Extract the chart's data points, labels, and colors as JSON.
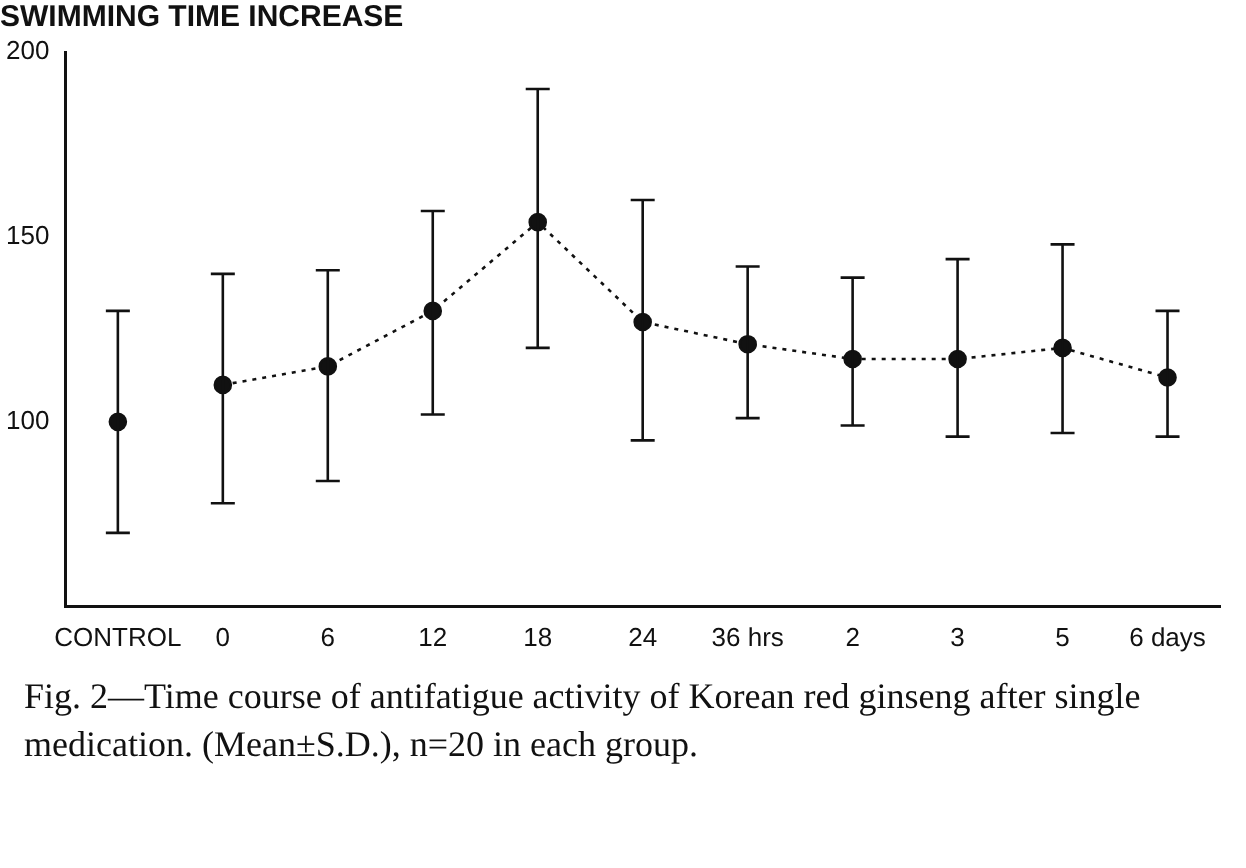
{
  "chart_data": {
    "type": "line",
    "title": "SWIMMING TIME INCREASE",
    "categories": [
      "CONTROL",
      "0",
      "6",
      "12",
      "18",
      "24",
      "36 hrs",
      "2",
      "3",
      "5",
      "6 days"
    ],
    "series": [
      {
        "type": "scatter",
        "color": "#111111",
        "values": [
          100,
          null,
          null,
          null,
          null,
          null,
          null,
          null,
          null,
          null,
          null
        ],
        "errors": [
          [
            70,
            130
          ],
          null,
          null,
          null,
          null,
          null,
          null,
          null,
          null,
          null,
          null
        ]
      },
      {
        "type": "line",
        "color": "#111111",
        "line_style": "dotted",
        "values": [
          null,
          110,
          115,
          130,
          154,
          127,
          121,
          117,
          117,
          120,
          112
        ],
        "errors": [
          null,
          [
            78,
            140
          ],
          [
            84,
            141
          ],
          [
            102,
            157
          ],
          [
            120,
            190
          ],
          [
            95,
            160
          ],
          [
            101,
            142
          ],
          [
            99,
            139
          ],
          [
            96,
            144
          ],
          [
            97,
            148
          ],
          [
            96,
            130
          ]
        ]
      }
    ],
    "ylim": [
      50,
      200
    ],
    "yticks": [
      100,
      150,
      200
    ],
    "grid": false,
    "legend": false,
    "marker": "circle",
    "annotations": [
      "Fig. 2—Time course of antifatigue activity of Korean red ginseng after single medication. (Mean±S.D.), n=20 in each group."
    ]
  }
}
